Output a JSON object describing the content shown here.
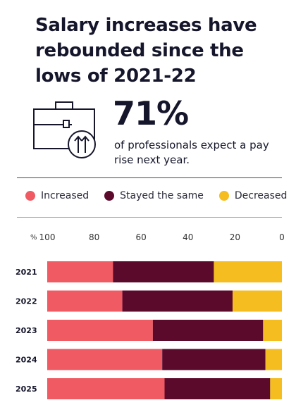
{
  "headline": "Salary increases have rebounded since the lows of 2021-22",
  "stat": {
    "value": "71%",
    "text": "of professionals expect a pay rise next year."
  },
  "icons": {
    "briefcase": "briefcase-icon",
    "arrows": "upward-arrows-icon"
  },
  "legend": [
    {
      "label": "Increased",
      "color": "#f05a63"
    },
    {
      "label": "Stayed the same",
      "color": "#5c0a2c"
    },
    {
      "label": "Decreased",
      "color": "#f5bd1f"
    }
  ],
  "chart_data": {
    "type": "bar",
    "orientation": "horizontal",
    "stacked": true,
    "x_unit_label": "%",
    "x_ticks": [
      "100",
      "80",
      "60",
      "40",
      "20",
      "0"
    ],
    "xlim": [
      100,
      0
    ],
    "categories": [
      "2021",
      "2022",
      "2023",
      "2024",
      "2025"
    ],
    "series": [
      {
        "name": "Increased",
        "color": "#f05a63",
        "values": [
          28,
          32,
          45,
          49,
          50
        ]
      },
      {
        "name": "Stayed the same",
        "color": "#5c0a2c",
        "values": [
          43,
          47,
          47,
          44,
          45
        ]
      },
      {
        "name": "Decreased",
        "color": "#f5bd1f",
        "values": [
          29,
          21,
          8,
          7,
          5
        ]
      }
    ]
  }
}
